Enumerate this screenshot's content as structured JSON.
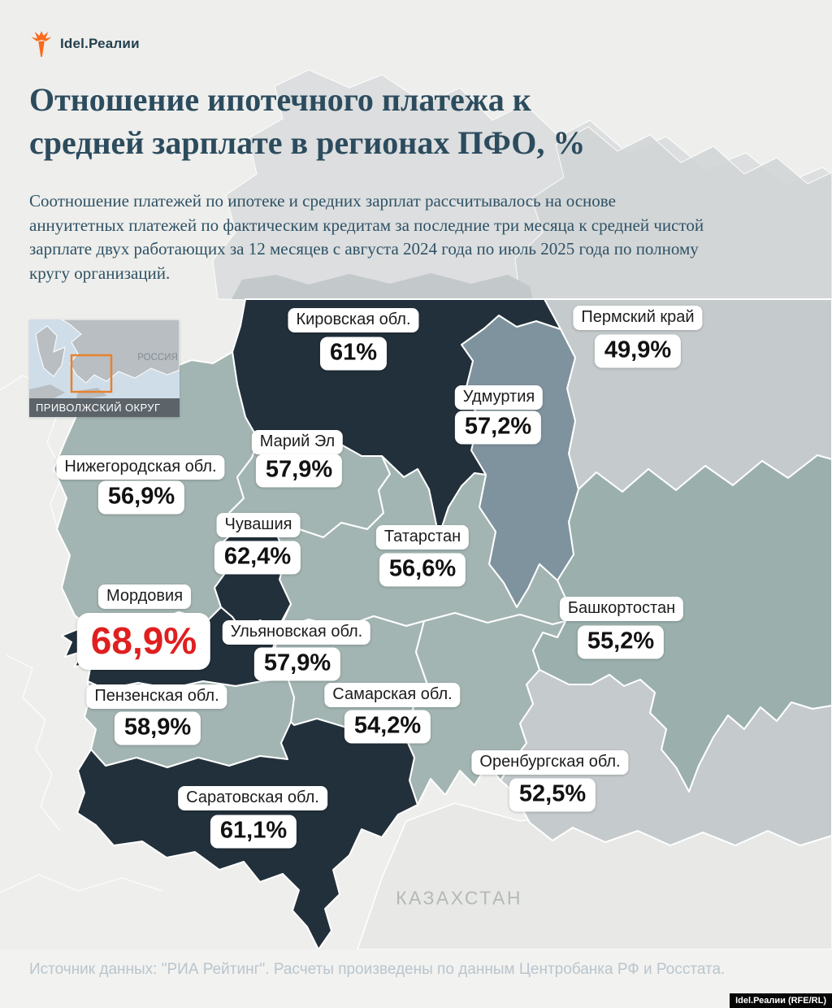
{
  "logo": {
    "text": "Idel.Реалии"
  },
  "title_lines": [
    "Отношение ипотечного платежа к",
    "средней зарплате в регионах ПФО, %"
  ],
  "subtitle_lines": [
    "Соотношение платежей по ипотеке и средних зарплат рассчитывалось на основе",
    "аннуитетных платежей по фактическим кредитам за последние три месяца к средней чистой",
    "зарплате двух работающих за 12 месяцев с августа 2024 года по июль 2025 года по полному",
    "кругу организаций."
  ],
  "inset": {
    "country_label": "РОССИЯ",
    "district_label": "ПРИВОЛЖСКИЙ ОКРУГ"
  },
  "map": {
    "neighbor_label": "КАЗАХСТАН",
    "regions": [
      {
        "id": "kirov",
        "name": "Кировская обл.",
        "value": "61%",
        "tone": "dark"
      },
      {
        "id": "perm",
        "name": "Пермский край",
        "value": "49,9%",
        "tone": "light"
      },
      {
        "id": "udmurtia",
        "name": "Удмуртия",
        "value": "57,2%",
        "tone": "blue"
      },
      {
        "id": "mariel",
        "name": "Марий Эл",
        "value": "57,9%",
        "tone": "medium"
      },
      {
        "id": "nn",
        "name": "Нижегородская обл.",
        "value": "56,9%",
        "tone": "medium"
      },
      {
        "id": "chuvashia",
        "name": "Чувашия",
        "value": "62,4%",
        "tone": "dark"
      },
      {
        "id": "tatarstan",
        "name": "Татарстан",
        "value": "56,6%",
        "tone": "medium"
      },
      {
        "id": "mordovia",
        "name": "Мордовия",
        "value": "68,9%",
        "tone": "dark",
        "highlight": true
      },
      {
        "id": "ulyanovsk",
        "name": "Ульяновская обл.",
        "value": "57,9%",
        "tone": "medium"
      },
      {
        "id": "bashkir",
        "name": "Башкортостан",
        "value": "55,2%",
        "tone": "teal"
      },
      {
        "id": "penza",
        "name": "Пензенская обл.",
        "value": "58,9%",
        "tone": "medium"
      },
      {
        "id": "samara",
        "name": "Самарская обл.",
        "value": "54,2%",
        "tone": "medium"
      },
      {
        "id": "orenburg",
        "name": "Оренбургская обл.",
        "value": "52,5%",
        "tone": "light"
      },
      {
        "id": "saratov",
        "name": "Саратовская обл.",
        "value": "61,1%",
        "tone": "dark"
      }
    ]
  },
  "footer": {
    "source": "Источник данных: \"РИА Рейтинг\". Расчеты произведены по данным Центробанка РФ и Росстата."
  },
  "badge": "Idel.Реалии (RFE/RL)",
  "colors": {
    "dark": "#22303b",
    "blue": "#7f939e",
    "medium": "#a3b5b2",
    "teal": "#9bb0ad",
    "light": "#c5cacc",
    "highlight_red": "#e01f1f",
    "title_ink": "#2c4c5e",
    "accent_orange": "#e8822c"
  }
}
